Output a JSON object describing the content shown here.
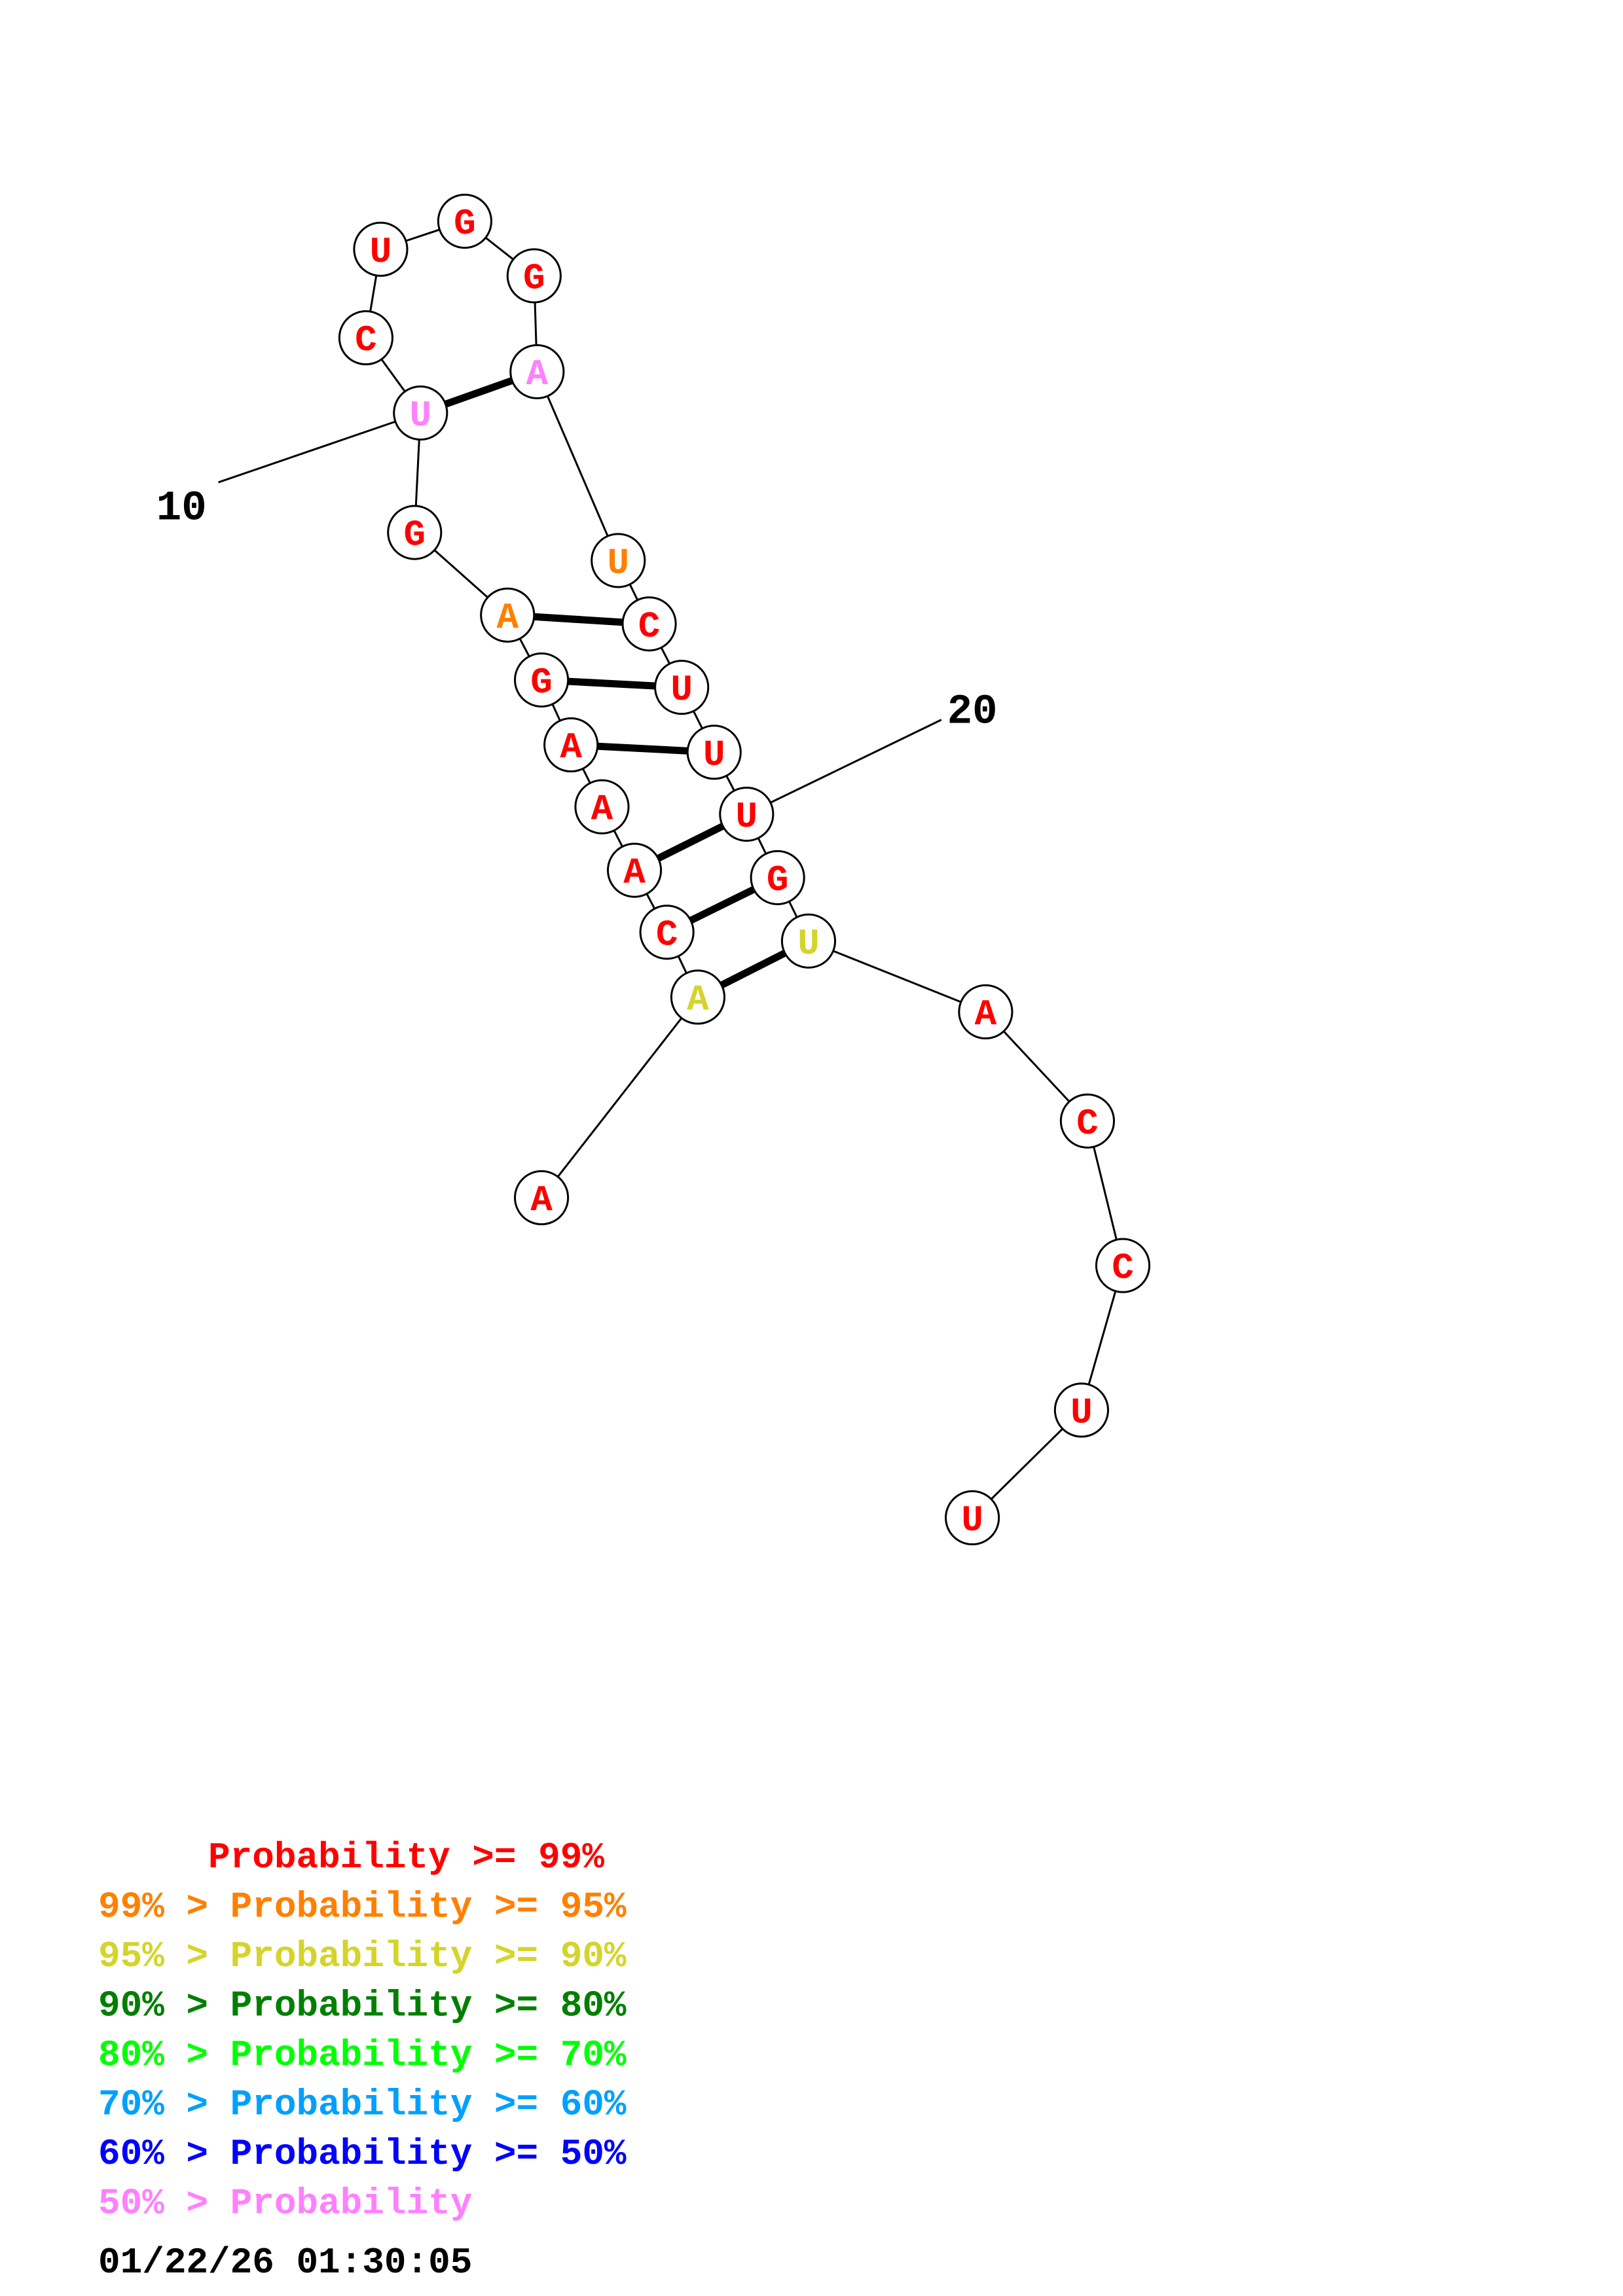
{
  "colors": {
    "p99": "#ff0000",
    "p95": "#ff8000",
    "p90": "#d4d42a",
    "p80": "#007f00",
    "p70": "#00ff00",
    "p60": "#00a0ff",
    "p50": "#0000ff",
    "lt50": "#ff80ff"
  },
  "nucleotides": [
    {
      "base": "A",
      "color": "p99"
    },
    {
      "base": "A",
      "color": "p90"
    },
    {
      "base": "C",
      "color": "p99"
    },
    {
      "base": "A",
      "color": "p99"
    },
    {
      "base": "A",
      "color": "p99"
    },
    {
      "base": "A",
      "color": "p99"
    },
    {
      "base": "G",
      "color": "p99"
    },
    {
      "base": "A",
      "color": "p95"
    },
    {
      "base": "G",
      "color": "p99"
    },
    {
      "base": "U",
      "color": "lt50"
    },
    {
      "base": "C",
      "color": "p99"
    },
    {
      "base": "U",
      "color": "p99"
    },
    {
      "base": "G",
      "color": "p99"
    },
    {
      "base": "G",
      "color": "p99"
    },
    {
      "base": "A",
      "color": "lt50"
    },
    {
      "base": "U",
      "color": "p95"
    },
    {
      "base": "C",
      "color": "p99"
    },
    {
      "base": "U",
      "color": "p99"
    },
    {
      "base": "U",
      "color": "p99"
    },
    {
      "base": "U",
      "color": "p99"
    },
    {
      "base": "G",
      "color": "p99"
    },
    {
      "base": "U",
      "color": "p90"
    },
    {
      "base": "A",
      "color": "p99"
    },
    {
      "base": "C",
      "color": "p99"
    },
    {
      "base": "C",
      "color": "p99"
    },
    {
      "base": "U",
      "color": "p99"
    },
    {
      "base": "U",
      "color": "p99"
    }
  ],
  "pairs": [
    [
      2,
      22
    ],
    [
      3,
      21
    ],
    [
      4,
      20
    ],
    [
      6,
      19
    ],
    [
      7,
      18
    ],
    [
      8,
      17
    ],
    [
      10,
      15
    ]
  ],
  "position_labels": [
    {
      "text": "10",
      "index": 10
    },
    {
      "text": "20",
      "index": 20
    }
  ],
  "legend": [
    {
      "text": "     Probability >= 99%",
      "color": "p99"
    },
    {
      "text": "99% > Probability >= 95%",
      "color": "p95"
    },
    {
      "text": "95% > Probability >= 90%",
      "color": "p90"
    },
    {
      "text": "90% > Probability >= 80%",
      "color": "p80"
    },
    {
      "text": "80% > Probability >= 70%",
      "color": "p70"
    },
    {
      "text": "70% > Probability >= 60%",
      "color": "p60"
    },
    {
      "text": "60% > Probability >= 50%",
      "color": "p50"
    },
    {
      "text": "50% > Probability",
      "color": "lt50"
    }
  ],
  "timestamp": "01/22/26 01:30:05"
}
